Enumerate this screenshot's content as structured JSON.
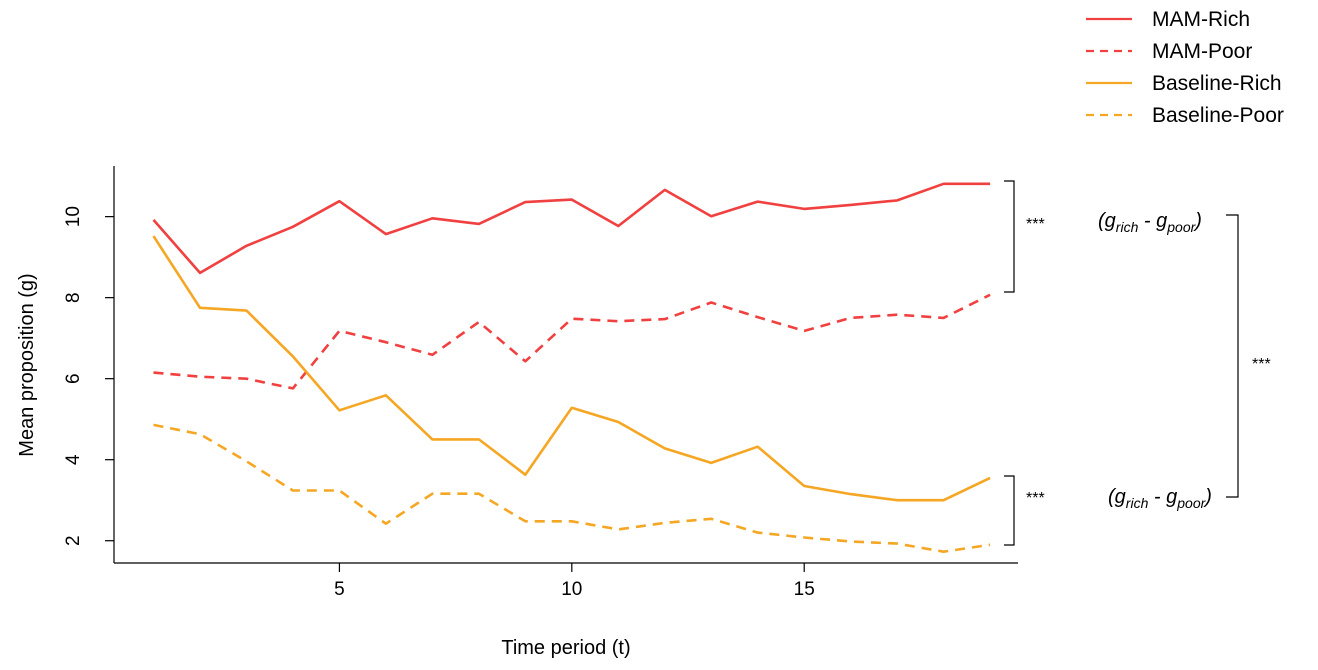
{
  "chart_data": {
    "type": "line",
    "title": "",
    "xlabel": "Time period (t)",
    "ylabel": "Mean proposition (g)",
    "xlim": [
      0.15,
      19.6
    ],
    "ylim": [
      1.45,
      11.25
    ],
    "xticks": [
      5,
      10,
      15
    ],
    "yticks": [
      2,
      4,
      6,
      8,
      10
    ],
    "x": [
      1,
      2,
      3,
      4,
      5,
      6,
      7,
      8,
      9,
      10,
      11,
      12,
      13,
      14,
      15,
      16,
      17,
      18,
      19
    ],
    "series": [
      {
        "name": "MAM-Rich",
        "color": "#f04040",
        "style": "solid",
        "values": [
          9.92,
          8.61,
          9.28,
          9.75,
          10.38,
          9.57,
          9.96,
          9.82,
          10.36,
          10.42,
          9.77,
          10.66,
          10.01,
          10.37,
          10.19,
          10.29,
          10.4,
          10.81,
          10.81
        ]
      },
      {
        "name": "MAM-Poor",
        "color": "#f04040",
        "style": "dashed",
        "values": [
          6.15,
          6.05,
          6.0,
          5.76,
          7.18,
          6.9,
          6.59,
          7.4,
          6.43,
          7.48,
          7.42,
          7.47,
          7.88,
          7.52,
          7.18,
          7.5,
          7.58,
          7.5,
          8.07
        ]
      },
      {
        "name": "Baseline-Rich",
        "color": "#f5a623",
        "style": "solid",
        "values": [
          9.52,
          7.75,
          7.68,
          6.55,
          5.22,
          5.59,
          4.5,
          4.5,
          3.63,
          5.28,
          4.93,
          4.28,
          3.92,
          4.32,
          3.35,
          3.15,
          3.0,
          3.0,
          3.55
        ]
      },
      {
        "name": "Baseline-Poor",
        "color": "#f5a623",
        "style": "dashed",
        "values": [
          4.86,
          4.63,
          3.96,
          3.24,
          3.24,
          2.42,
          3.16,
          3.16,
          2.48,
          2.48,
          2.28,
          2.44,
          2.54,
          2.2,
          2.08,
          1.98,
          1.93,
          1.73,
          1.9
        ]
      }
    ],
    "legend_position": "top-right",
    "annotations": {
      "significance": [
        "***",
        "***",
        "***"
      ],
      "gap_labels": [
        {
          "g": "g",
          "rich": "rich",
          "poor": "poor",
          "open": "(",
          "minus": " - ",
          "close": ")"
        },
        {
          "g": "g",
          "rich": "rich",
          "poor": "poor",
          "open": "(",
          "minus": " - ",
          "close": ")"
        }
      ]
    }
  }
}
